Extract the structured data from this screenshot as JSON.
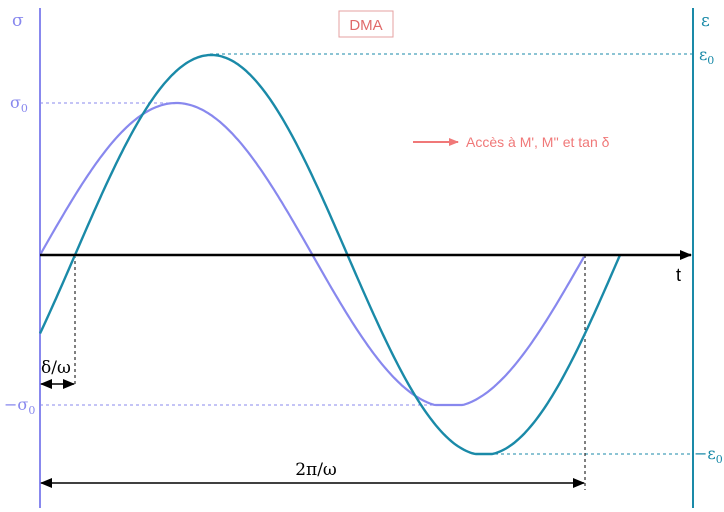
{
  "title": "DMA",
  "stress_axis_label": "σ",
  "strain_axis_label": "ε",
  "time_axis_label": "t",
  "sigma0_label": "σ",
  "sigma0_sub": "0",
  "neg_sigma0_label": "−σ",
  "neg_sigma0_sub": "0",
  "eps0_label": "ε",
  "eps0_sub": "0",
  "neg_eps0_label": "−ε",
  "neg_eps0_sub": "0",
  "phase_label": "δ/ω",
  "period_label": "2π/ω",
  "note": "Accès à M', M'' et tan δ",
  "colors": {
    "stress": "#8888ee",
    "strain": "#1a8aa8",
    "title": "#e06a6a",
    "note": "#f07878",
    "axis": "#000000"
  },
  "icons": {
    "arrow": "right-arrow-icon"
  }
}
